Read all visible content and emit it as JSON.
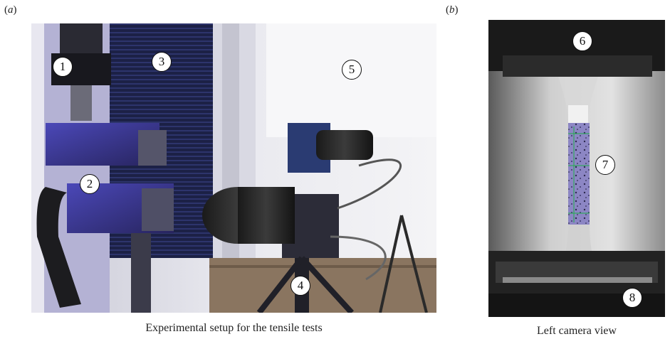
{
  "panels": [
    {
      "label_open": "(",
      "label_letter": "a",
      "label_close": ")",
      "caption": "Experimental setup for the tensile tests",
      "callouts": [
        "1",
        "2",
        "3",
        "4",
        "5"
      ]
    },
    {
      "label_open": "(",
      "label_letter": "b",
      "label_close": ")",
      "caption": "Left camera view",
      "callouts": [
        "6",
        "7",
        "8"
      ]
    }
  ]
}
